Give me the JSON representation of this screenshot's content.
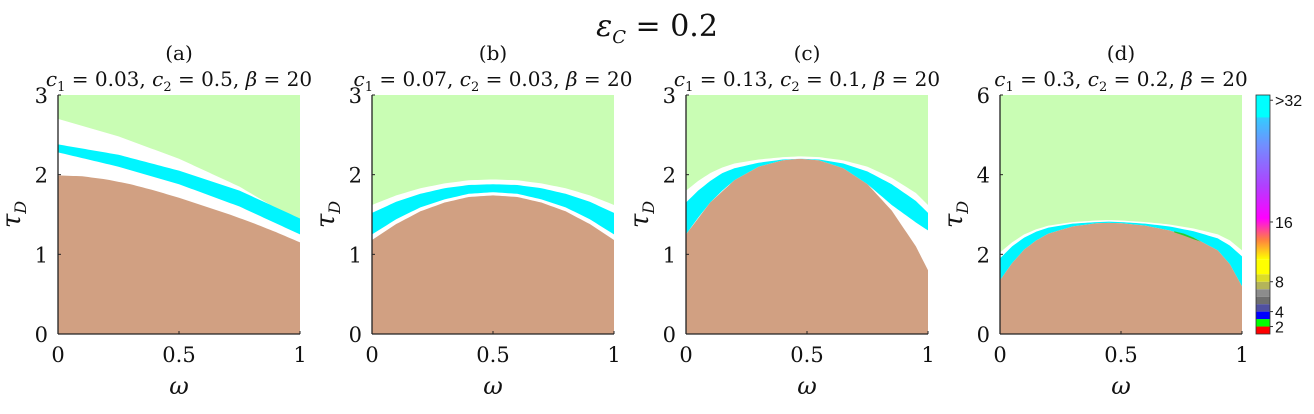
{
  "figure": {
    "suptitle_symbol": "ε",
    "suptitle_subscript": "C",
    "suptitle_rest": " = 0.2"
  },
  "chart_data": [
    {
      "type": "area",
      "panel_label": "(a)",
      "title": "c1 = 0.03, c2 = 0.5, β = 20",
      "title_parts": {
        "c1": "0.03",
        "c2": "0.5",
        "beta": "20"
      },
      "xlabel": "ω",
      "ylabel_sym": "τ",
      "ylabel_sub": "D",
      "xlim": [
        0,
        1
      ],
      "ylim": [
        0,
        3
      ],
      "xticks": [
        {
          "v": 0,
          "label": "0"
        },
        {
          "v": 0.5,
          "label": "0.5"
        },
        {
          "v": 1,
          "label": "1"
        }
      ],
      "yticks": [
        {
          "v": 0,
          "label": "0"
        },
        {
          "v": 1,
          "label": "1"
        },
        {
          "v": 2,
          "label": "2"
        },
        {
          "v": 3,
          "label": "3"
        }
      ],
      "regions": {
        "brown_upper_boundary": {
          "x": [
            0,
            0.1,
            0.2,
            0.3,
            0.4,
            0.5,
            0.6,
            0.7,
            0.8,
            0.9,
            1.0
          ],
          "y": [
            1.99,
            1.98,
            1.94,
            1.88,
            1.8,
            1.71,
            1.61,
            1.51,
            1.4,
            1.28,
            1.15
          ]
        },
        "cyan_lower_boundary": {
          "x": [
            0,
            0.25,
            0.5,
            0.75,
            1.0
          ],
          "y": [
            2.28,
            2.1,
            1.88,
            1.6,
            1.25
          ]
        },
        "cyan_upper_boundary": {
          "x": [
            0,
            0.25,
            0.5,
            0.75,
            1.0
          ],
          "y": [
            2.38,
            2.25,
            2.05,
            1.8,
            1.45
          ]
        },
        "green_lower_boundary": {
          "x": [
            0,
            0.25,
            0.5,
            0.75,
            1.0
          ],
          "y": [
            2.7,
            2.48,
            2.2,
            1.85,
            1.4
          ]
        }
      }
    },
    {
      "type": "area",
      "panel_label": "(b)",
      "title": "c1 = 0.07, c2 = 0.03, β = 20",
      "title_parts": {
        "c1": "0.07",
        "c2": "0.03",
        "beta": "20"
      },
      "xlabel": "ω",
      "ylabel_sym": "τ",
      "ylabel_sub": "D",
      "xlim": [
        0,
        1
      ],
      "ylim": [
        0,
        3
      ],
      "xticks": [
        {
          "v": 0,
          "label": "0"
        },
        {
          "v": 0.5,
          "label": "0.5"
        },
        {
          "v": 1,
          "label": "1"
        }
      ],
      "yticks": [
        {
          "v": 0,
          "label": "0"
        },
        {
          "v": 1,
          "label": "1"
        },
        {
          "v": 2,
          "label": "2"
        },
        {
          "v": 3,
          "label": "3"
        }
      ],
      "regions": {
        "brown_upper_boundary": {
          "x": [
            0,
            0.1,
            0.2,
            0.3,
            0.4,
            0.5,
            0.6,
            0.7,
            0.8,
            0.9,
            1.0
          ],
          "y": [
            1.18,
            1.38,
            1.54,
            1.65,
            1.72,
            1.74,
            1.72,
            1.65,
            1.54,
            1.38,
            1.18
          ]
        },
        "cyan_lower_boundary": {
          "x": [
            0,
            0.1,
            0.2,
            0.3,
            0.4,
            0.5,
            0.6,
            0.7,
            0.8,
            0.9,
            1.0
          ],
          "y": [
            1.25,
            1.44,
            1.59,
            1.69,
            1.76,
            1.78,
            1.76,
            1.69,
            1.59,
            1.44,
            1.25
          ]
        },
        "cyan_upper_boundary": {
          "x": [
            0,
            0.1,
            0.2,
            0.3,
            0.4,
            0.5,
            0.6,
            0.7,
            0.8,
            0.9,
            1.0
          ],
          "y": [
            1.52,
            1.66,
            1.76,
            1.83,
            1.87,
            1.88,
            1.87,
            1.83,
            1.76,
            1.66,
            1.52
          ]
        },
        "green_lower_boundary": {
          "x": [
            0,
            0.1,
            0.2,
            0.3,
            0.4,
            0.5,
            0.6,
            0.7,
            0.8,
            0.9,
            1.0
          ],
          "y": [
            1.62,
            1.74,
            1.83,
            1.89,
            1.93,
            1.94,
            1.93,
            1.89,
            1.83,
            1.74,
            1.62
          ]
        }
      }
    },
    {
      "type": "area",
      "panel_label": "(c)",
      "title": "c1 = 0.13, c2 = 0.1, β = 20",
      "title_parts": {
        "c1": "0.13",
        "c2": "0.1",
        "beta": "20"
      },
      "xlabel": "ω",
      "ylabel_sym": "τ",
      "ylabel_sub": "D",
      "xlim": [
        0,
        1
      ],
      "ylim": [
        0,
        3
      ],
      "xticks": [
        {
          "v": 0,
          "label": "0"
        },
        {
          "v": 0.5,
          "label": "0.5"
        },
        {
          "v": 1,
          "label": "1"
        }
      ],
      "yticks": [
        {
          "v": 0,
          "label": "0"
        },
        {
          "v": 1,
          "label": "1"
        },
        {
          "v": 2,
          "label": "2"
        },
        {
          "v": 3,
          "label": "3"
        }
      ],
      "regions": {
        "brown_upper_boundary": {
          "x": [
            0,
            0.1,
            0.2,
            0.3,
            0.4,
            0.47,
            0.55,
            0.65,
            0.75,
            0.85,
            0.95,
            1.0
          ],
          "y": [
            1.25,
            1.65,
            1.93,
            2.1,
            2.18,
            2.2,
            2.18,
            2.08,
            1.88,
            1.55,
            1.1,
            0.8
          ]
        },
        "cyan_lower_boundary": {
          "x": [
            0,
            0.05,
            0.1,
            0.15,
            0.2,
            0.3,
            0.4,
            0.47,
            0.55,
            0.65,
            0.75,
            0.85,
            0.95,
            1.0
          ],
          "y": [
            1.25,
            1.46,
            1.65,
            1.8,
            1.93,
            2.1,
            2.18,
            2.2,
            2.18,
            2.08,
            1.88,
            1.62,
            1.4,
            1.3
          ]
        },
        "cyan_upper_boundary": {
          "x": [
            0,
            0.05,
            0.1,
            0.15,
            0.2,
            0.3,
            0.4,
            0.47,
            0.55,
            0.65,
            0.75,
            0.85,
            0.95,
            1.0
          ],
          "y": [
            1.65,
            1.8,
            1.92,
            2.02,
            2.08,
            2.15,
            2.19,
            2.2,
            2.19,
            2.14,
            2.04,
            1.88,
            1.67,
            1.52
          ]
        },
        "green_lower_boundary": {
          "x": [
            0,
            0.05,
            0.1,
            0.15,
            0.2,
            0.3,
            0.4,
            0.47,
            0.55,
            0.65,
            0.75,
            0.85,
            0.95,
            1.0
          ],
          "y": [
            1.8,
            1.92,
            2.02,
            2.09,
            2.14,
            2.19,
            2.22,
            2.23,
            2.22,
            2.18,
            2.1,
            1.96,
            1.77,
            1.62
          ]
        }
      }
    },
    {
      "type": "area",
      "panel_label": "(d)",
      "title": "c1 = 0.3, c2 = 0.2, β = 20",
      "title_parts": {
        "c1": "0.3",
        "c2": "0.2",
        "beta": "20"
      },
      "xlabel": "ω",
      "ylabel_sym": "τ",
      "ylabel_sub": "D",
      "xlim": [
        0,
        1
      ],
      "ylim": [
        0,
        6
      ],
      "xticks": [
        {
          "v": 0,
          "label": "0"
        },
        {
          "v": 0.5,
          "label": "0.5"
        },
        {
          "v": 1,
          "label": "1"
        }
      ],
      "yticks": [
        {
          "v": 0,
          "label": "0"
        },
        {
          "v": 2,
          "label": "2"
        },
        {
          "v": 4,
          "label": "4"
        },
        {
          "v": 6,
          "label": "6"
        }
      ],
      "regions": {
        "brown_upper_boundary": {
          "x": [
            0,
            0.05,
            0.1,
            0.15,
            0.2,
            0.3,
            0.4,
            0.45,
            0.5,
            0.6,
            0.7,
            0.8,
            0.9,
            0.95,
            1.0
          ],
          "y": [
            1.35,
            1.78,
            2.12,
            2.35,
            2.52,
            2.7,
            2.78,
            2.79,
            2.78,
            2.72,
            2.6,
            2.42,
            2.1,
            1.75,
            1.2
          ]
        },
        "cyan_lower_boundary": {
          "x": [
            0,
            0.05,
            0.1,
            0.15,
            0.2,
            0.3,
            0.4,
            0.45,
            0.5,
            0.6,
            0.7,
            0.8,
            0.9,
            0.95,
            1.0
          ],
          "y": [
            1.35,
            1.78,
            2.12,
            2.35,
            2.52,
            2.7,
            2.78,
            2.79,
            2.78,
            2.72,
            2.6,
            2.42,
            2.1,
            1.75,
            1.2
          ]
        },
        "cyan_upper_boundary": {
          "x": [
            0,
            0.05,
            0.1,
            0.15,
            0.2,
            0.3,
            0.4,
            0.45,
            0.5,
            0.6,
            0.7,
            0.8,
            0.9,
            0.95,
            1.0
          ],
          "y": [
            1.9,
            2.2,
            2.42,
            2.57,
            2.67,
            2.77,
            2.81,
            2.82,
            2.81,
            2.77,
            2.7,
            2.58,
            2.4,
            2.22,
            1.95
          ]
        },
        "green_lower_boundary": {
          "x": [
            0,
            0.05,
            0.1,
            0.15,
            0.2,
            0.3,
            0.4,
            0.45,
            0.5,
            0.6,
            0.7,
            0.8,
            0.9,
            0.95,
            1.0
          ],
          "y": [
            2.05,
            2.3,
            2.5,
            2.63,
            2.72,
            2.81,
            2.85,
            2.86,
            2.85,
            2.81,
            2.75,
            2.65,
            2.5,
            2.35,
            2.1
          ]
        },
        "small_green_patch": {
          "x": [
            0.72,
            0.76,
            0.8,
            0.83,
            0.8,
            0.76,
            0.72
          ],
          "y": [
            2.58,
            2.52,
            2.42,
            2.32,
            2.38,
            2.47,
            2.55
          ]
        }
      }
    }
  ],
  "colorbar": {
    "colors": {
      "top": "#00FFFF",
      "upper_mid": "#FF00FF",
      "mid": "#FFFF00",
      "gray": "#808080",
      "blue": "#0000FF",
      "green": "#00FF00",
      "red": "#FF0000"
    },
    "ticks": [
      {
        "v": 2,
        "label": "2"
      },
      {
        "v": 4,
        "label": "4"
      },
      {
        "v": 8,
        "label": "8"
      },
      {
        "v": 16,
        "label": "16"
      },
      {
        "v": 32,
        "label": ">32"
      }
    ]
  },
  "region_colors": {
    "brown": "#D1A082",
    "cyan": "#00F5FF",
    "green": "#C9FDB4",
    "white": "#FFFFFF"
  }
}
